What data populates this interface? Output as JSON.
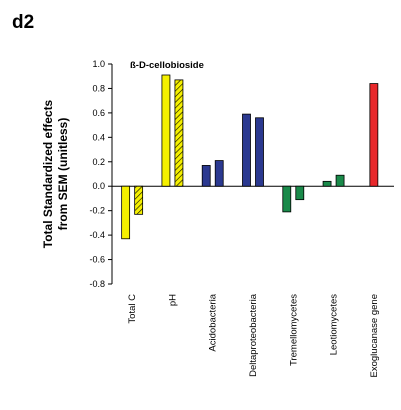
{
  "panel_label": "d2",
  "chart_data": {
    "type": "bar",
    "title": "ß-D-cellobioside",
    "ylabel_line1": "Total Standardized effects",
    "ylabel_line2": "from SEM (unitless)",
    "ylim": [
      -0.8,
      1.0
    ],
    "yticks": [
      "-0.8",
      "-0.6",
      "-0.4",
      "-0.2",
      "0.0",
      "0.2",
      "0.4",
      "0.6",
      "0.8",
      "1.0"
    ],
    "grid": false,
    "categories": [
      "Total C",
      "pH",
      "Acidobacteria",
      "Deltaproteobacteria",
      "Tremellomycetes",
      "Leotiomycetes",
      "Exoglucanase gene"
    ],
    "bars": [
      {
        "category": "Total C",
        "values": [
          -0.43,
          -0.23
        ],
        "color": "#f5f000",
        "hatched": [
          false,
          true
        ]
      },
      {
        "category": "pH",
        "values": [
          0.91,
          0.87
        ],
        "color": "#f5f000",
        "hatched": [
          false,
          true
        ]
      },
      {
        "category": "Acidobacteria",
        "values": [
          0.17,
          0.21
        ],
        "color": "#2b3990",
        "hatched": [
          false,
          false
        ]
      },
      {
        "category": "Deltaproteobacteria",
        "values": [
          0.59,
          0.56
        ],
        "color": "#2b3990",
        "hatched": [
          false,
          false
        ]
      },
      {
        "category": "Tremellomycetes",
        "values": [
          -0.21,
          -0.11
        ],
        "color": "#1a8a4a",
        "hatched": [
          false,
          false
        ]
      },
      {
        "category": "Leotiomycetes",
        "values": [
          0.04,
          0.09
        ],
        "color": "#1a8a4a",
        "hatched": [
          false,
          false
        ]
      },
      {
        "category": "Exoglucanase gene",
        "values": [
          0.84
        ],
        "color": "#e8282b",
        "hatched": [
          false
        ]
      }
    ]
  }
}
